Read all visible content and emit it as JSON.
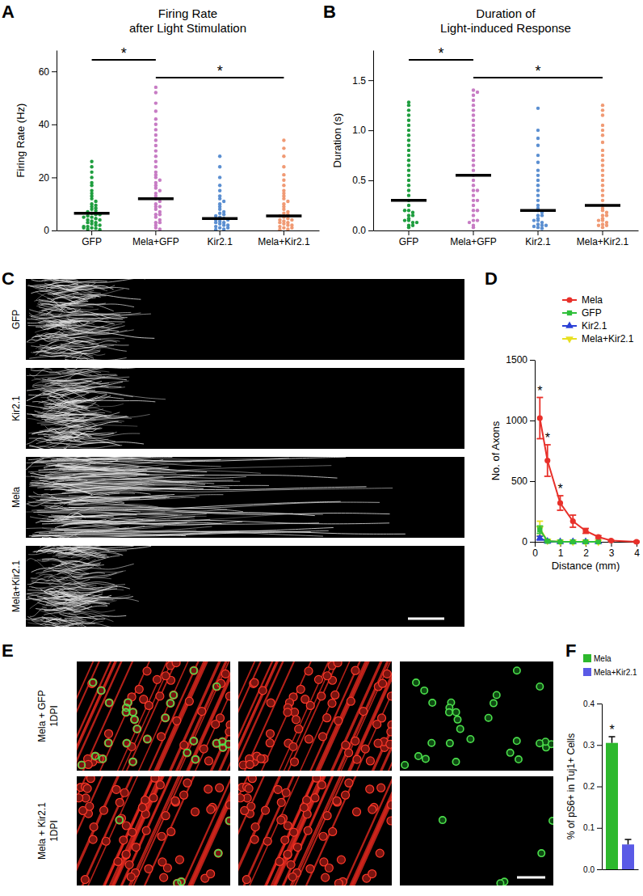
{
  "chart_data": [
    {
      "panel": "A",
      "type": "scatter",
      "title": "Firing Rate",
      "subtitle": "after Light Stimulation",
      "y_label": "Firing Rate (Hz)",
      "ylim": [
        0,
        68
      ],
      "yticks": [
        0,
        20,
        40,
        60
      ],
      "series": [
        {
          "name": "GFP",
          "color": "#1f9e3f",
          "mean": 6.5,
          "values": [
            26,
            24,
            22,
            20,
            18,
            17,
            15,
            14,
            13,
            12,
            11,
            10,
            9.5,
            9,
            8.5,
            8,
            7.5,
            7,
            6.5,
            6,
            5.5,
            5,
            4.5,
            4,
            3.5,
            3,
            2.5,
            2,
            1.5,
            1,
            0.8,
            0.5,
            0.3,
            2,
            3,
            4,
            5,
            6,
            1,
            1.5
          ]
        },
        {
          "name": "Mela+GFP",
          "color": "#c77cc4",
          "mean": 12,
          "values": [
            54,
            52,
            48,
            45,
            42,
            40,
            38,
            36,
            34,
            32,
            30,
            28,
            26,
            24,
            22,
            21,
            20,
            19,
            18,
            17,
            16,
            15,
            14,
            13,
            12,
            11,
            10,
            9,
            8,
            7,
            6,
            5,
            4,
            3,
            2,
            1,
            0.5,
            3,
            6,
            9
          ]
        },
        {
          "name": "Kir2.1",
          "color": "#5b8fd1",
          "mean": 4.5,
          "values": [
            28,
            24,
            20,
            17,
            15,
            13,
            12,
            11,
            10,
            9,
            8,
            7,
            6.5,
            6,
            5.5,
            5,
            4.5,
            4,
            3.5,
            3,
            2.5,
            2,
            1.5,
            1,
            0.5,
            0.3,
            2,
            3,
            1,
            4
          ]
        },
        {
          "name": "Mela+Kir2.1",
          "color": "#f09a74",
          "mean": 5.5,
          "values": [
            34,
            31,
            28,
            24,
            21,
            19,
            17,
            15,
            14,
            13,
            12,
            11,
            10,
            9,
            8,
            7,
            6.5,
            6,
            5.5,
            5,
            4.5,
            4,
            3.5,
            3,
            2.5,
            2,
            1.5,
            1,
            0.5,
            0.3,
            2,
            3,
            4,
            1
          ]
        }
      ],
      "annotations": [
        {
          "text": "*",
          "from": "GFP",
          "to": "Mela+GFP"
        },
        {
          "text": "*",
          "from": "Mela+GFP",
          "to": "Mela+Kir2.1"
        }
      ]
    },
    {
      "panel": "B",
      "type": "scatter",
      "title": "Duration of",
      "subtitle": "Light-induced Response",
      "y_label": "Duration (s)",
      "ylim": [
        0,
        1.8
      ],
      "yticks": [
        {
          "value": 0,
          "label": "0.0"
        },
        0.5,
        {
          "value": 1,
          "label": "1.0"
        },
        1.5
      ],
      "series": [
        {
          "name": "GFP",
          "color": "#1f9e3f",
          "mean": 0.3,
          "values": [
            1.28,
            1.25,
            1.2,
            1.15,
            1.1,
            1.05,
            1.0,
            0.95,
            0.9,
            0.85,
            0.8,
            0.75,
            0.7,
            0.65,
            0.6,
            0.55,
            0.5,
            0.45,
            0.4,
            0.35,
            0.3,
            0.25,
            0.2,
            0.18,
            0.15,
            0.12,
            0.1,
            0.08,
            0.05,
            0.03,
            0.1,
            0.15,
            0.2,
            0.05,
            0.08
          ]
        },
        {
          "name": "Mela+GFP",
          "color": "#c77cc4",
          "mean": 0.55,
          "values": [
            1.4,
            1.38,
            1.35,
            1.3,
            1.25,
            1.2,
            1.15,
            1.1,
            1.05,
            1.0,
            0.95,
            0.9,
            0.85,
            0.8,
            0.75,
            0.7,
            0.65,
            0.6,
            0.55,
            0.5,
            0.45,
            0.4,
            0.35,
            0.3,
            0.25,
            0.2,
            0.15,
            0.1,
            0.05,
            0.03,
            0.1,
            0.2,
            0.3,
            0.4,
            0.08
          ]
        },
        {
          "name": "Kir2.1",
          "color": "#5b8fd1",
          "mean": 0.2,
          "values": [
            1.22,
            1.0,
            0.92,
            0.85,
            0.75,
            0.68,
            0.6,
            0.55,
            0.5,
            0.45,
            0.4,
            0.35,
            0.3,
            0.25,
            0.22,
            0.2,
            0.18,
            0.15,
            0.12,
            0.1,
            0.08,
            0.06,
            0.05,
            0.04,
            0.03,
            0.02,
            0.1,
            0.05,
            0.15
          ]
        },
        {
          "name": "Mela+Kir2.1",
          "color": "#f09a74",
          "mean": 0.25,
          "values": [
            1.25,
            1.2,
            1.15,
            1.05,
            1.0,
            0.95,
            0.88,
            0.8,
            0.75,
            0.7,
            0.65,
            0.6,
            0.55,
            0.5,
            0.45,
            0.4,
            0.35,
            0.3,
            0.25,
            0.22,
            0.2,
            0.18,
            0.15,
            0.12,
            0.1,
            0.08,
            0.06,
            0.05,
            0.03,
            0.1,
            0.05,
            0.15
          ]
        }
      ],
      "annotations": [
        {
          "text": "*",
          "from": "GFP",
          "to": "Mela+GFP"
        },
        {
          "text": "*",
          "from": "Mela+GFP",
          "to": "Mela+Kir2.1"
        }
      ]
    },
    {
      "panel": "D",
      "type": "line",
      "x_label": "Distance (mm)",
      "y_label": "No. of Axons",
      "x": [
        0.2,
        0.5,
        1,
        1.5,
        2,
        2.5,
        3,
        4
      ],
      "xlim": [
        0,
        4
      ],
      "xticks": [
        0,
        1,
        2,
        3,
        4
      ],
      "ylim": [
        0,
        1500
      ],
      "yticks": [
        0,
        500,
        1000,
        1500
      ],
      "legend": "top-right",
      "series": [
        {
          "name": "Mela",
          "color": "#e8302a",
          "marker": "circle",
          "values": [
            1020,
            670,
            320,
            170,
            90,
            40,
            10,
            0
          ],
          "errors": [
            170,
            130,
            60,
            50,
            20,
            10,
            5,
            5
          ]
        },
        {
          "name": "GFP",
          "color": "#2fbf3a",
          "marker": "square",
          "values": [
            100,
            5,
            0,
            0,
            0,
            0,
            null,
            null
          ],
          "errors": [
            30,
            5,
            0,
            0,
            0,
            0,
            null,
            null
          ]
        },
        {
          "name": "Kir2.1",
          "color": "#2a3fd6",
          "marker": "triangle-up",
          "values": [
            30,
            3,
            0,
            0,
            0,
            0,
            null,
            null
          ],
          "errors": [
            15,
            3,
            0,
            0,
            0,
            0,
            null,
            null
          ]
        },
        {
          "name": "Mela+Kir2.1",
          "color": "#e8e021",
          "marker": "triangle-down",
          "values": [
            110,
            8,
            0,
            0,
            0,
            0,
            null,
            null
          ],
          "errors": [
            60,
            6,
            0,
            0,
            0,
            0,
            null,
            null
          ]
        }
      ],
      "annotations": [
        {
          "text": "*",
          "x": 0.2
        },
        {
          "text": "*",
          "x": 0.5
        },
        {
          "text": "*",
          "x": 1
        }
      ]
    },
    {
      "panel": "F",
      "type": "bar",
      "categories": [
        "Mela",
        "Mela+Kir2.1"
      ],
      "values": [
        0.305,
        0.06
      ],
      "errors": [
        0.015,
        0.012
      ],
      "colors": [
        "#2db82d",
        "#5a5ae6"
      ],
      "y_label": "% of pS6+ in Tuj1+ Cells",
      "ylim": [
        0,
        0.4
      ],
      "yticks": [
        {
          "value": 0,
          "label": "0.0"
        },
        0.1,
        0.2,
        0.3,
        0.4
      ],
      "legend": "top-right",
      "tick_labels": "y",
      "annotations": [
        {
          "text": "*",
          "category": "Mela"
        }
      ]
    }
  ],
  "images": [
    {
      "panel": "C",
      "rows": [
        "GFP",
        "Kir2.1",
        "Mela",
        "Mela+Kir2.1"
      ]
    },
    {
      "panel": "E",
      "rows": [
        [
          "Mela + GFP",
          "1DPI"
        ],
        [
          "Mela + Kir2.1",
          "1DPI"
        ]
      ]
    }
  ]
}
